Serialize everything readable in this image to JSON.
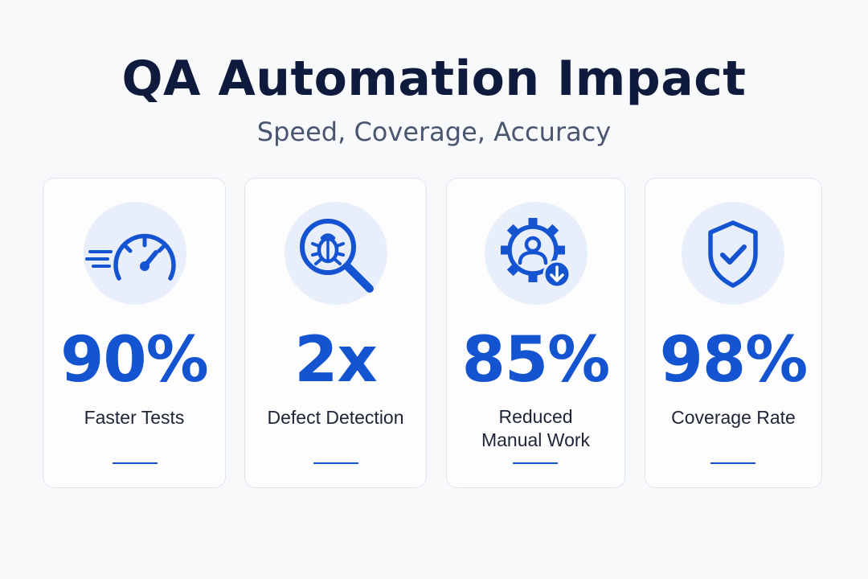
{
  "header": {
    "title": "QA Automation Impact",
    "subtitle": "Speed, Coverage, Accuracy"
  },
  "colors": {
    "accent": "#1554d1",
    "title": "#0f1b3d",
    "icon_background": "#e8eefa"
  },
  "metrics": [
    {
      "value": "90%",
      "label": "Faster Tests",
      "icon": "speedometer-icon"
    },
    {
      "value": "2x",
      "label": "Defect Detection",
      "icon": "bug-magnifier-icon"
    },
    {
      "value": "85%",
      "label_line1": "Reduced",
      "label_line2": "Manual Work",
      "icon": "gear-user-icon"
    },
    {
      "value": "98%",
      "label": "Coverage Rate",
      "icon": "shield-check-icon"
    }
  ]
}
